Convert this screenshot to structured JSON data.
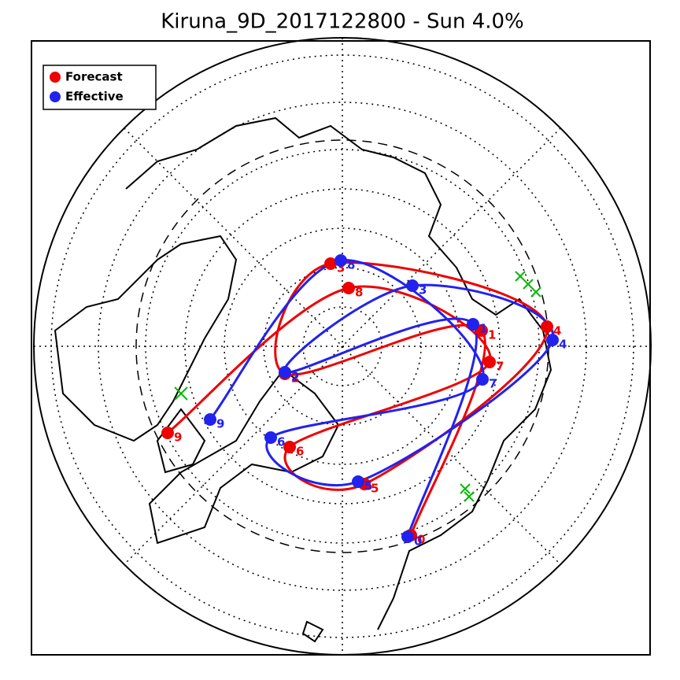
{
  "title": "Kiruna_9D_2017122800 - Sun 4.0%",
  "legend": [
    {
      "label": "Forecast",
      "color": "#ee0000"
    },
    {
      "label": "Effective",
      "color": "#2222ee"
    }
  ],
  "tracks": [
    {
      "name": "Forecast",
      "color": "#ee0000",
      "points": [
        "0",
        "1",
        "2",
        "3",
        "4",
        "5",
        "6",
        "7",
        "8",
        "9"
      ]
    },
    {
      "name": "Effective",
      "color": "#2222ee",
      "points": [
        "0",
        "1",
        "2",
        "3",
        "4",
        "5",
        "6",
        "7",
        "8",
        "9"
      ]
    }
  ]
}
